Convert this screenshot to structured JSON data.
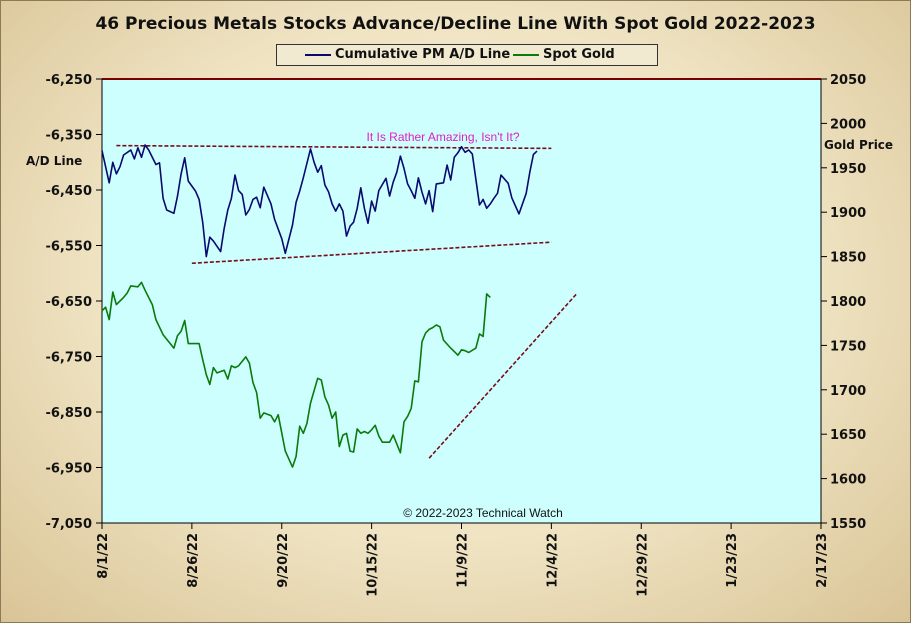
{
  "chart_data": {
    "type": "line",
    "title": "46 Precious Metals Stocks Advance/Decline Line With Spot Gold 2022-2023",
    "copyright": "© 2022-2023 Technical Watch",
    "annotation": "It Is Rather Amazing, Isn't It?",
    "left_axis": {
      "label": "A/D Line",
      "ylim": [
        -7050,
        -6250
      ],
      "ticks": [
        "-6,250",
        "-6,350",
        "-6,450",
        "-6,550",
        "-6,650",
        "-6,750",
        "-6,850",
        "-6,950",
        "-7,050"
      ]
    },
    "right_axis": {
      "label": "Gold Price",
      "ylim": [
        1550,
        2050
      ],
      "ticks": [
        "2050",
        "2000",
        "1950",
        "1900",
        "1850",
        "1800",
        "1750",
        "1700",
        "1650",
        "1600",
        "1550"
      ]
    },
    "x_axis": {
      "start": "8/1/22",
      "ticks": [
        "8/1/22",
        "8/26/22",
        "9/20/22",
        "10/15/22",
        "11/9/22",
        "12/4/22",
        "12/29/22",
        "1/23/23",
        "2/17/23"
      ],
      "tick_days": [
        0,
        25,
        50,
        75,
        100,
        125,
        150,
        175,
        200
      ]
    },
    "grid": false,
    "legend_position": "top-center",
    "series": [
      {
        "name": "Cumulative PM A/D Line",
        "axis": "left",
        "color": "#0a0a6e",
        "points": [
          [
            0,
            -6379
          ],
          [
            2,
            -6437
          ],
          [
            3,
            -6400
          ],
          [
            4,
            -6421
          ],
          [
            5,
            -6408
          ],
          [
            6,
            -6387
          ],
          [
            8,
            -6378
          ],
          [
            9,
            -6394
          ],
          [
            10,
            -6374
          ],
          [
            11,
            -6391
          ],
          [
            12,
            -6369
          ],
          [
            13,
            -6378
          ],
          [
            15,
            -6404
          ],
          [
            16,
            -6401
          ],
          [
            17,
            -6465
          ],
          [
            18,
            -6486
          ],
          [
            20,
            -6492
          ],
          [
            21,
            -6461
          ],
          [
            22,
            -6421
          ],
          [
            23,
            -6392
          ],
          [
            24,
            -6434
          ],
          [
            26,
            -6452
          ],
          [
            27,
            -6467
          ],
          [
            28,
            -6508
          ],
          [
            29,
            -6570
          ],
          [
            30,
            -6535
          ],
          [
            31,
            -6542
          ],
          [
            33,
            -6561
          ],
          [
            34,
            -6519
          ],
          [
            35,
            -6486
          ],
          [
            36,
            -6465
          ],
          [
            37,
            -6423
          ],
          [
            38,
            -6451
          ],
          [
            39,
            -6458
          ],
          [
            40,
            -6495
          ],
          [
            41,
            -6485
          ],
          [
            42,
            -6467
          ],
          [
            43,
            -6463
          ],
          [
            44,
            -6482
          ],
          [
            45,
            -6445
          ],
          [
            47,
            -6475
          ],
          [
            48,
            -6503
          ],
          [
            50,
            -6538
          ],
          [
            51,
            -6564
          ],
          [
            53,
            -6513
          ],
          [
            54,
            -6472
          ],
          [
            55,
            -6452
          ],
          [
            56,
            -6428
          ],
          [
            58,
            -6376
          ],
          [
            59,
            -6400
          ],
          [
            60,
            -6418
          ],
          [
            61,
            -6406
          ],
          [
            62,
            -6441
          ],
          [
            63,
            -6453
          ],
          [
            64,
            -6475
          ],
          [
            65,
            -6488
          ],
          [
            66,
            -6475
          ],
          [
            67,
            -6488
          ],
          [
            68,
            -6533
          ],
          [
            69,
            -6515
          ],
          [
            70,
            -6508
          ],
          [
            71,
            -6483
          ],
          [
            72,
            -6446
          ],
          [
            73,
            -6483
          ],
          [
            74,
            -6510
          ],
          [
            75,
            -6470
          ],
          [
            76,
            -6488
          ],
          [
            77,
            -6451
          ],
          [
            79,
            -6429
          ],
          [
            80,
            -6461
          ],
          [
            81,
            -6436
          ],
          [
            82,
            -6418
          ],
          [
            83,
            -6389
          ],
          [
            84,
            -6411
          ],
          [
            85,
            -6439
          ],
          [
            86,
            -6451
          ],
          [
            87,
            -6465
          ],
          [
            88,
            -6428
          ],
          [
            89,
            -6454
          ],
          [
            90,
            -6475
          ],
          [
            91,
            -6451
          ],
          [
            92,
            -6489
          ],
          [
            93,
            -6439
          ],
          [
            95,
            -6437
          ],
          [
            96,
            -6405
          ],
          [
            97,
            -6432
          ],
          [
            98,
            -6391
          ],
          [
            99,
            -6383
          ],
          [
            100,
            -6372
          ],
          [
            101,
            -6382
          ],
          [
            102,
            -6378
          ],
          [
            103,
            -6385
          ],
          [
            105,
            -6477
          ],
          [
            106,
            -6467
          ],
          [
            107,
            -6483
          ],
          [
            108,
            -6475
          ],
          [
            109,
            -6465
          ],
          [
            110,
            -6456
          ],
          [
            111,
            -6423
          ],
          [
            113,
            -6438
          ],
          [
            114,
            -6464
          ],
          [
            116,
            -6493
          ],
          [
            118,
            -6456
          ],
          [
            119,
            -6418
          ],
          [
            120,
            -6386
          ],
          [
            121,
            -6380
          ]
        ]
      },
      {
        "name": "Spot Gold",
        "axis": "right",
        "color": "#0a7a0a",
        "points": [
          [
            0,
            1789
          ],
          [
            1,
            1793
          ],
          [
            2,
            1779
          ],
          [
            3,
            1810
          ],
          [
            4,
            1796
          ],
          [
            6,
            1804
          ],
          [
            7,
            1809
          ],
          [
            8,
            1817
          ],
          [
            10,
            1816
          ],
          [
            11,
            1821
          ],
          [
            12,
            1812
          ],
          [
            14,
            1796
          ],
          [
            15,
            1779
          ],
          [
            17,
            1762
          ],
          [
            18,
            1757
          ],
          [
            20,
            1747
          ],
          [
            21,
            1761
          ],
          [
            22,
            1766
          ],
          [
            23,
            1778
          ],
          [
            24,
            1752
          ],
          [
            27,
            1752
          ],
          [
            28,
            1734
          ],
          [
            29,
            1717
          ],
          [
            30,
            1706
          ],
          [
            31,
            1725
          ],
          [
            32,
            1719
          ],
          [
            34,
            1722
          ],
          [
            35,
            1712
          ],
          [
            36,
            1727
          ],
          [
            37,
            1725
          ],
          [
            38,
            1727
          ],
          [
            40,
            1737
          ],
          [
            41,
            1730
          ],
          [
            42,
            1708
          ],
          [
            43,
            1697
          ],
          [
            44,
            1668
          ],
          [
            45,
            1674
          ],
          [
            47,
            1671
          ],
          [
            48,
            1664
          ],
          [
            49,
            1672
          ],
          [
            51,
            1631
          ],
          [
            53,
            1613
          ],
          [
            54,
            1625
          ],
          [
            55,
            1659
          ],
          [
            56,
            1651
          ],
          [
            57,
            1662
          ],
          [
            58,
            1685
          ],
          [
            60,
            1713
          ],
          [
            61,
            1711
          ],
          [
            62,
            1692
          ],
          [
            63,
            1683
          ],
          [
            64,
            1668
          ],
          [
            65,
            1675
          ],
          [
            66,
            1636
          ],
          [
            67,
            1649
          ],
          [
            68,
            1651
          ],
          [
            69,
            1631
          ],
          [
            70,
            1630
          ],
          [
            71,
            1656
          ],
          [
            72,
            1651
          ],
          [
            73,
            1653
          ],
          [
            74,
            1651
          ],
          [
            75,
            1655
          ],
          [
            76,
            1660
          ],
          [
            77,
            1648
          ],
          [
            78,
            1641
          ],
          [
            80,
            1641
          ],
          [
            81,
            1649
          ],
          [
            83,
            1629
          ],
          [
            84,
            1664
          ],
          [
            85,
            1670
          ],
          [
            86,
            1679
          ],
          [
            87,
            1710
          ],
          [
            88,
            1709
          ],
          [
            89,
            1754
          ],
          [
            90,
            1764
          ],
          [
            91,
            1768
          ],
          [
            92,
            1770
          ],
          [
            93,
            1773
          ],
          [
            94,
            1771
          ],
          [
            95,
            1756
          ],
          [
            97,
            1747
          ],
          [
            98,
            1743
          ],
          [
            99,
            1739
          ],
          [
            100,
            1745
          ],
          [
            101,
            1744
          ],
          [
            102,
            1742
          ],
          [
            104,
            1747
          ],
          [
            105,
            1763
          ],
          [
            106,
            1760
          ],
          [
            107,
            1808
          ],
          [
            108,
            1804
          ]
        ]
      }
    ],
    "trendlines": [
      {
        "axis": "left",
        "color": "#7a0a1a",
        "from": [
          4,
          -6370
        ],
        "to": [
          125,
          -6375
        ]
      },
      {
        "axis": "left",
        "color": "#7a0a1a",
        "from": [
          25,
          -6582
        ],
        "to": [
          125,
          -6544
        ]
      },
      {
        "axis": "right",
        "color": "#7a0a1a",
        "from": [
          91,
          1623
        ],
        "to": [
          132,
          1808
        ]
      }
    ]
  }
}
